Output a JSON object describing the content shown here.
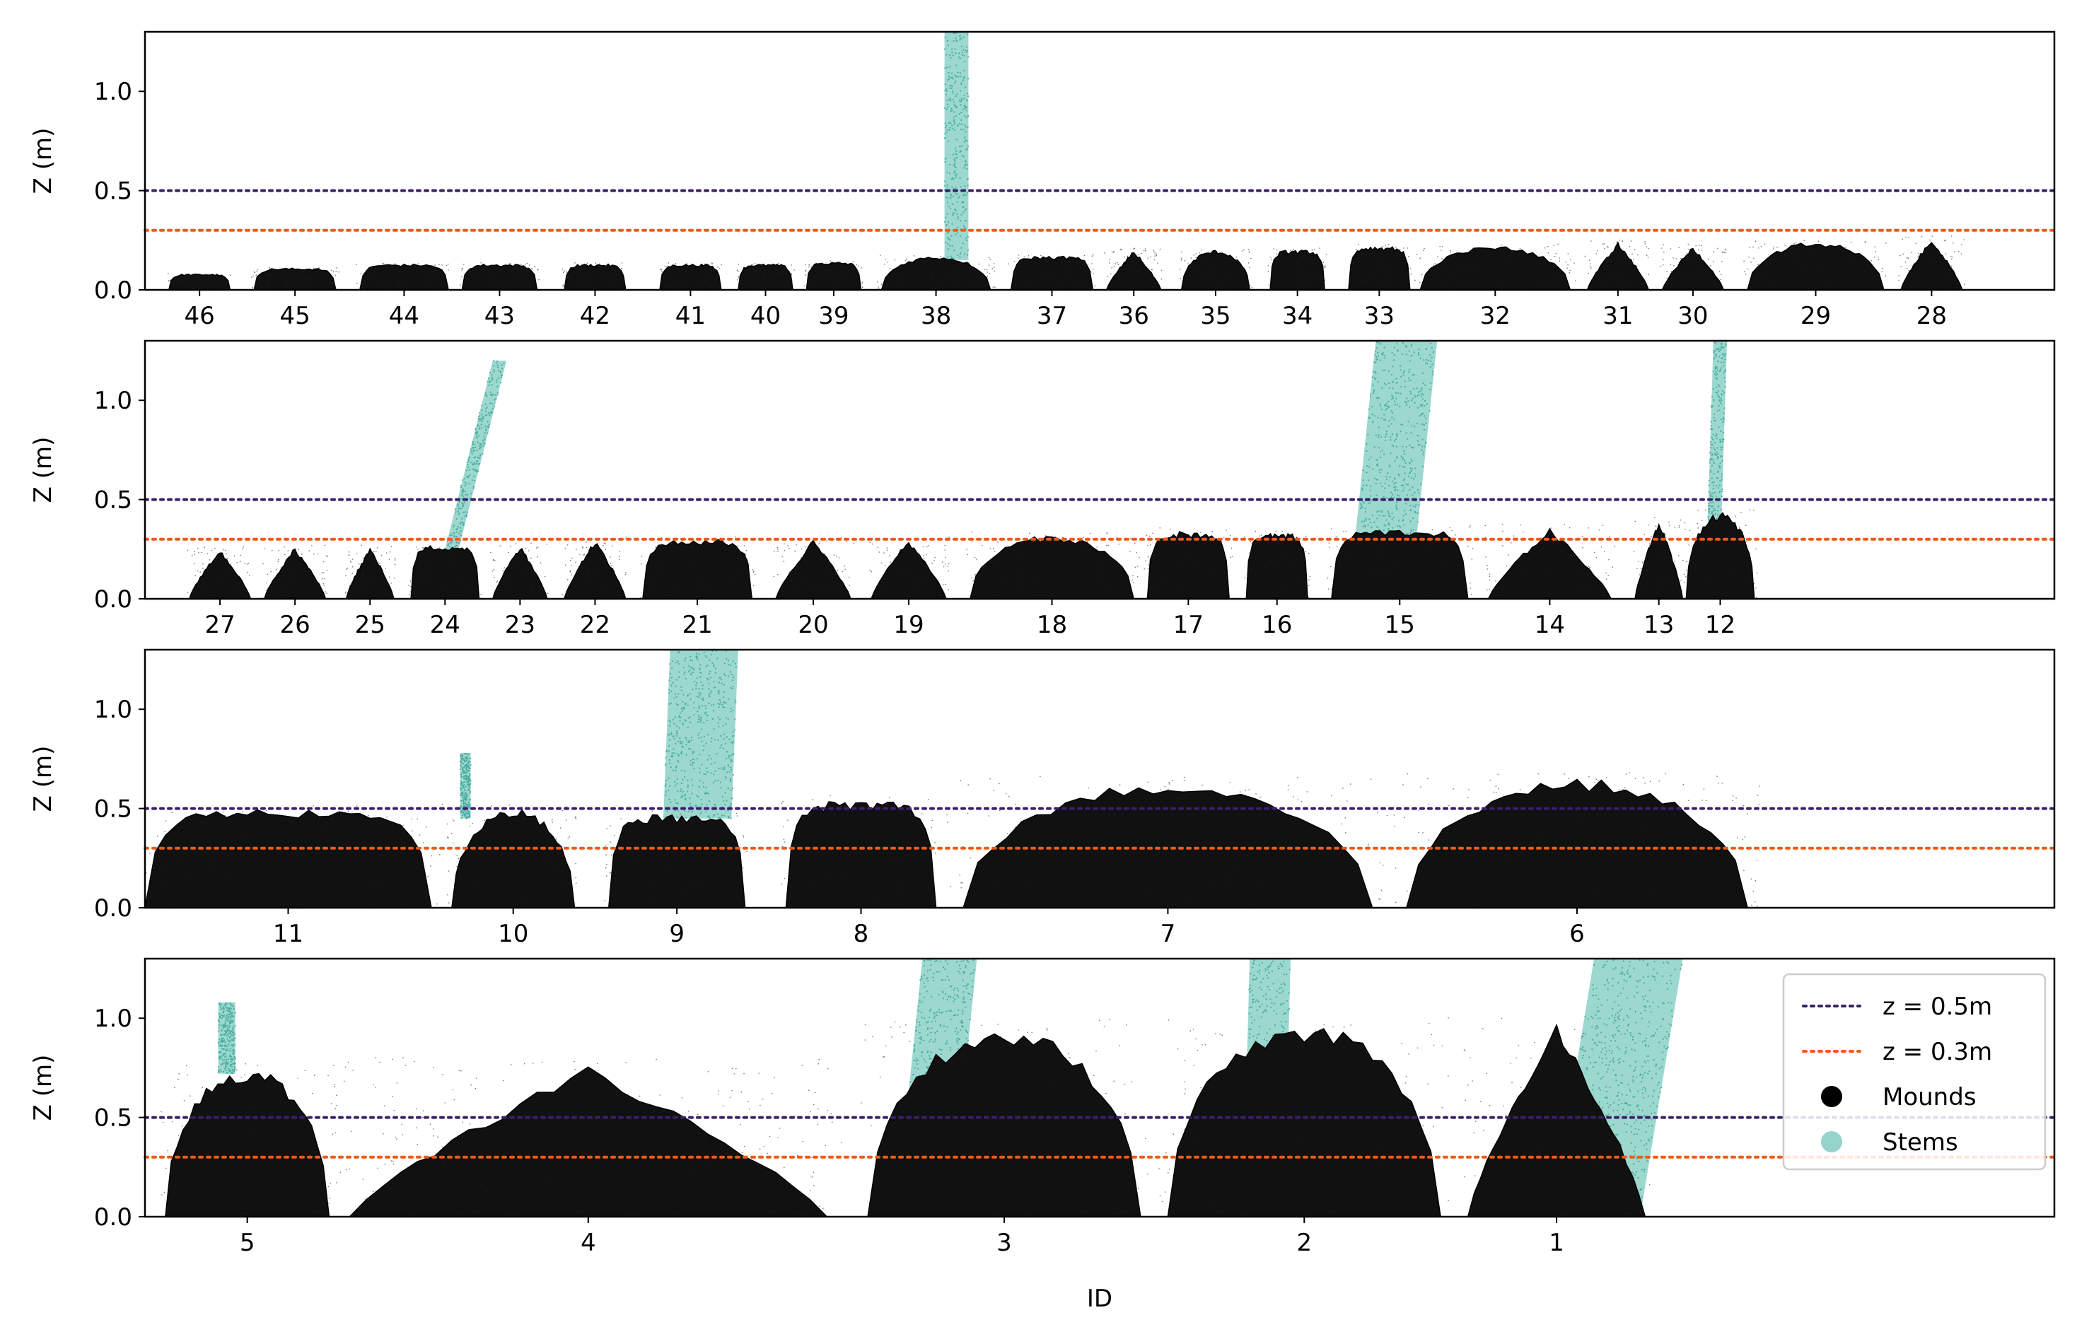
{
  "chart_data": {
    "type": "scatter",
    "xlabel": "ID",
    "ylabel": "Z (m)",
    "ylim": [
      0,
      1.3
    ],
    "yticks": [
      "0.0",
      "0.5",
      "1.0"
    ],
    "legend": {
      "position": "top-right of bottom panel",
      "entries": [
        {
          "label": "z = 0.5m",
          "kind": "dotted-line",
          "color": "#3b1f6b"
        },
        {
          "label": "z = 0.3m",
          "kind": "dotted-line",
          "color": "#f05a14"
        },
        {
          "label": "Mounds",
          "kind": "marker",
          "color": "#000000"
        },
        {
          "label": "Stems",
          "kind": "marker",
          "color": "#4db8a8"
        }
      ]
    },
    "reference_lines": [
      {
        "z": 0.5,
        "color": "#3b1f6b"
      },
      {
        "z": 0.3,
        "color": "#f05a14"
      }
    ],
    "panels": [
      {
        "x_range": [
          0,
          28
        ],
        "mounds": [
          {
            "id": "46",
            "x": 0.8,
            "hw": 0.45,
            "h": 0.08,
            "shape": "flat"
          },
          {
            "id": "45",
            "x": 2.2,
            "hw": 0.6,
            "h": 0.11,
            "shape": "flat"
          },
          {
            "id": "44",
            "x": 3.8,
            "hw": 0.65,
            "h": 0.13,
            "shape": "flat"
          },
          {
            "id": "43",
            "x": 5.2,
            "hw": 0.55,
            "h": 0.13,
            "shape": "flat"
          },
          {
            "id": "42",
            "x": 6.6,
            "hw": 0.45,
            "h": 0.13,
            "shape": "flat"
          },
          {
            "id": "41",
            "x": 8.0,
            "hw": 0.45,
            "h": 0.13,
            "shape": "flat"
          },
          {
            "id": "40",
            "x": 9.1,
            "hw": 0.4,
            "h": 0.13,
            "shape": "flat"
          },
          {
            "id": "39",
            "x": 10.1,
            "hw": 0.4,
            "h": 0.14,
            "shape": "flat"
          },
          {
            "id": "38",
            "x": 11.6,
            "hw": 0.8,
            "h": 0.17,
            "shape": "dome"
          },
          {
            "id": "37",
            "x": 13.3,
            "hw": 0.6,
            "h": 0.17,
            "shape": "flat"
          },
          {
            "id": "36",
            "x": 14.5,
            "hw": 0.4,
            "h": 0.2,
            "shape": "peak"
          },
          {
            "id": "35",
            "x": 15.7,
            "hw": 0.5,
            "h": 0.2,
            "shape": "dome"
          },
          {
            "id": "34",
            "x": 16.9,
            "hw": 0.4,
            "h": 0.2,
            "shape": "flat"
          },
          {
            "id": "33",
            "x": 18.1,
            "hw": 0.45,
            "h": 0.22,
            "shape": "flat"
          },
          {
            "id": "32",
            "x": 19.8,
            "hw": 1.1,
            "h": 0.22,
            "shape": "dome"
          },
          {
            "id": "31",
            "x": 21.6,
            "hw": 0.45,
            "h": 0.24,
            "shape": "peak"
          },
          {
            "id": "30",
            "x": 22.7,
            "hw": 0.45,
            "h": 0.22,
            "shape": "peak"
          },
          {
            "id": "29",
            "x": 24.5,
            "hw": 1.0,
            "h": 0.24,
            "shape": "dome"
          },
          {
            "id": "28",
            "x": 26.2,
            "hw": 0.45,
            "h": 0.26,
            "shape": "peak"
          }
        ],
        "stems": [
          {
            "mound": "38",
            "x0": 11.9,
            "x1": 11.9,
            "z0": 0.15,
            "z1": 1.3,
            "w": 0.35
          }
        ]
      },
      {
        "x_range": [
          0,
          28
        ],
        "mounds": [
          {
            "id": "27",
            "x": 1.1,
            "hw": 0.45,
            "h": 0.25,
            "shape": "peak"
          },
          {
            "id": "26",
            "x": 2.2,
            "hw": 0.45,
            "h": 0.26,
            "shape": "peak"
          },
          {
            "id": "25",
            "x": 3.3,
            "hw": 0.35,
            "h": 0.26,
            "shape": "peak"
          },
          {
            "id": "24",
            "x": 4.4,
            "hw": 0.5,
            "h": 0.27,
            "shape": "flat"
          },
          {
            "id": "23",
            "x": 5.5,
            "hw": 0.4,
            "h": 0.27,
            "shape": "peak"
          },
          {
            "id": "22",
            "x": 6.6,
            "hw": 0.45,
            "h": 0.3,
            "shape": "peak"
          },
          {
            "id": "21",
            "x": 8.1,
            "hw": 0.8,
            "h": 0.3,
            "shape": "flat"
          },
          {
            "id": "20",
            "x": 9.8,
            "hw": 0.55,
            "h": 0.3,
            "shape": "peak"
          },
          {
            "id": "19",
            "x": 11.2,
            "hw": 0.55,
            "h": 0.3,
            "shape": "peak"
          },
          {
            "id": "18",
            "x": 13.3,
            "hw": 1.2,
            "h": 0.32,
            "shape": "dome"
          },
          {
            "id": "17",
            "x": 15.3,
            "hw": 0.6,
            "h": 0.34,
            "shape": "flat"
          },
          {
            "id": "16",
            "x": 16.6,
            "hw": 0.45,
            "h": 0.33,
            "shape": "flat"
          },
          {
            "id": "15",
            "x": 18.4,
            "hw": 1.0,
            "h": 0.35,
            "shape": "flat"
          },
          {
            "id": "14",
            "x": 20.6,
            "hw": 0.9,
            "h": 0.36,
            "shape": "peak"
          },
          {
            "id": "13",
            "x": 22.2,
            "hw": 0.35,
            "h": 0.4,
            "shape": "peak"
          },
          {
            "id": "12",
            "x": 23.1,
            "hw": 0.5,
            "h": 0.44,
            "shape": "dome"
          }
        ],
        "stems": [
          {
            "mound": "24",
            "x0": 4.5,
            "x1": 5.2,
            "z0": 0.25,
            "z1": 1.2,
            "w": 0.2
          },
          {
            "mound": "15",
            "x0": 18.2,
            "x1": 18.5,
            "z0": 0.32,
            "z1": 1.3,
            "w": 0.9
          },
          {
            "mound": "12",
            "x0": 23.0,
            "x1": 23.1,
            "z0": 0.2,
            "z1": 1.3,
            "w": 0.2
          }
        ]
      },
      {
        "x_range": [
          0,
          28
        ],
        "mounds": [
          {
            "id": "11",
            "x": 2.1,
            "hw": 2.1,
            "h": 0.5,
            "shape": "flat"
          },
          {
            "id": "10",
            "x": 5.4,
            "hw": 0.9,
            "h": 0.5,
            "shape": "dome"
          },
          {
            "id": "9",
            "x": 7.8,
            "hw": 1.0,
            "h": 0.47,
            "shape": "flat"
          },
          {
            "id": "8",
            "x": 10.5,
            "hw": 1.1,
            "h": 0.54,
            "shape": "flat"
          },
          {
            "id": "7",
            "x": 15.0,
            "hw": 3.0,
            "h": 0.63,
            "shape": "dome"
          },
          {
            "id": "6",
            "x": 21.0,
            "hw": 2.5,
            "h": 0.65,
            "shape": "dome"
          }
        ],
        "stems": [
          {
            "mound": "10",
            "x0": 4.7,
            "x1": 4.7,
            "z0": 0.45,
            "z1": 0.78,
            "w": 0.15
          },
          {
            "mound": "9",
            "x0": 8.1,
            "x1": 8.2,
            "z0": 0.45,
            "z1": 1.3,
            "w": 1.0
          }
        ]
      },
      {
        "x_range": [
          0,
          28
        ],
        "mounds": [
          {
            "id": "5",
            "x": 1.5,
            "hw": 1.2,
            "h": 0.75,
            "shape": "dome"
          },
          {
            "id": "4",
            "x": 6.5,
            "hw": 3.5,
            "h": 0.77,
            "shape": "peak"
          },
          {
            "id": "3",
            "x": 12.6,
            "hw": 2.0,
            "h": 0.95,
            "shape": "dome"
          },
          {
            "id": "2",
            "x": 17.0,
            "hw": 2.0,
            "h": 0.97,
            "shape": "dome"
          },
          {
            "id": "1",
            "x": 20.7,
            "hw": 1.3,
            "h": 1.0,
            "shape": "peak"
          }
        ],
        "stems": [
          {
            "mound": "5",
            "x0": 1.2,
            "x1": 1.2,
            "z0": 0.72,
            "z1": 1.08,
            "w": 0.25
          },
          {
            "mound": "3",
            "x0": 11.5,
            "x1": 11.8,
            "z0": 0.3,
            "z1": 1.3,
            "w": 0.8
          },
          {
            "mound": "2",
            "x0": 16.4,
            "x1": 16.5,
            "z0": 0.0,
            "z1": 1.3,
            "w": 0.6
          },
          {
            "mound": "1",
            "x0": 21.3,
            "x1": 21.9,
            "z0": 0.05,
            "z1": 1.3,
            "w": 1.3
          }
        ]
      }
    ]
  }
}
